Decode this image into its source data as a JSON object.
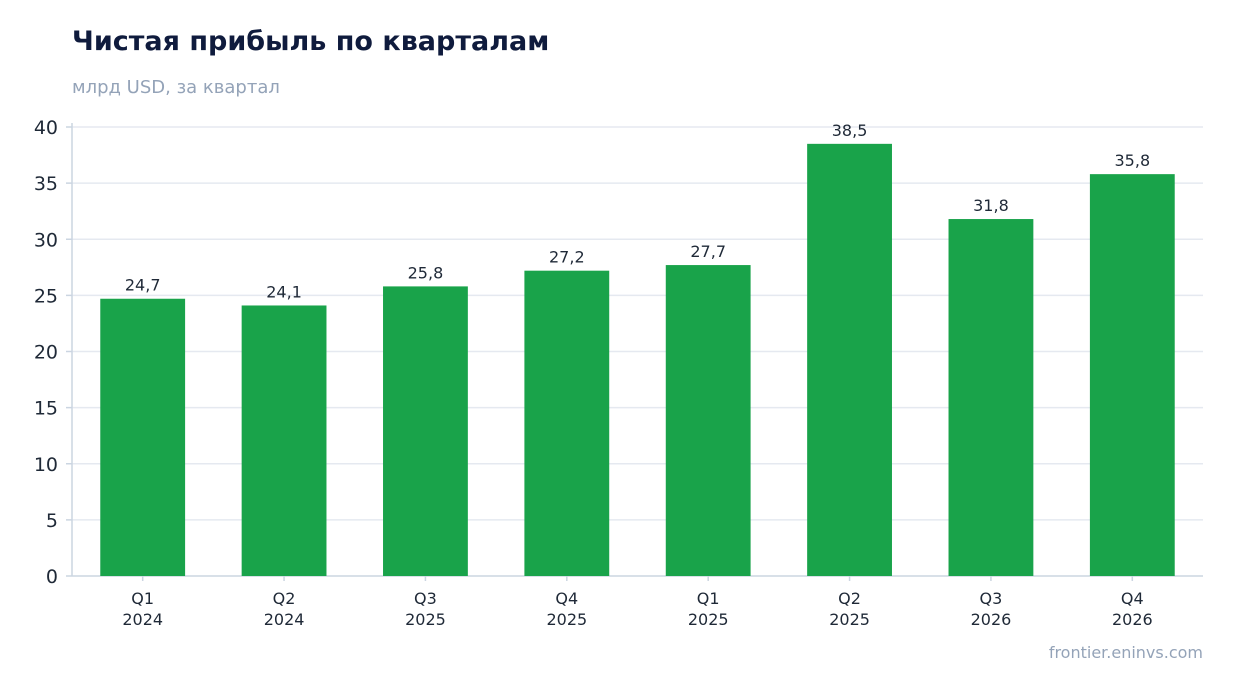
{
  "header": {
    "title": "Чистая прибыль по кварталам",
    "subtitle": "млрд USD, за квартал"
  },
  "footer": {
    "source": "frontier.eninvs.com"
  },
  "colors": {
    "bar": "#19a34a",
    "grid": "#e5e9f0",
    "axis": "#cbd5e1",
    "text": "#1f2937"
  },
  "chart_data": {
    "type": "bar",
    "title": "Чистая прибыль по кварталам",
    "subtitle": "млрд USD, за квартал",
    "categories": [
      [
        "Q1",
        "2024"
      ],
      [
        "Q2",
        "2024"
      ],
      [
        "Q3",
        "2025"
      ],
      [
        "Q4",
        "2025"
      ],
      [
        "Q1",
        "2025"
      ],
      [
        "Q2",
        "2025"
      ],
      [
        "Q3",
        "2026"
      ],
      [
        "Q4",
        "2026"
      ]
    ],
    "values": [
      24.7,
      24.1,
      25.8,
      27.2,
      27.7,
      38.5,
      31.8,
      35.8
    ],
    "value_labels": [
      "24,7",
      "24,1",
      "25,8",
      "27,2",
      "27,7",
      "38,5",
      "31,8",
      "35,8"
    ],
    "ylim": [
      0,
      40
    ],
    "yticks": [
      0,
      5,
      10,
      15,
      20,
      25,
      30,
      35,
      40
    ],
    "grid": true,
    "legend": "none"
  }
}
